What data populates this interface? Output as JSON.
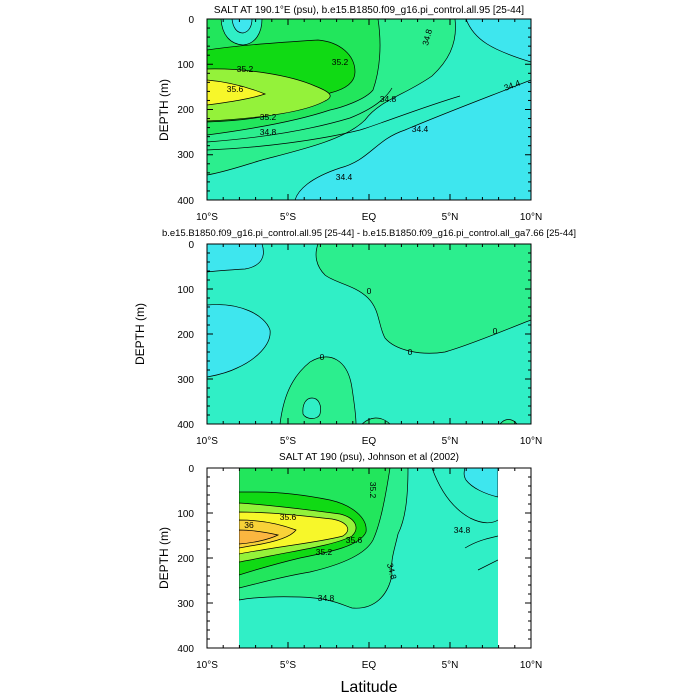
{
  "figure": {
    "xlabel": "Latitude"
  },
  "chart_data": [
    {
      "type": "contour",
      "title": "SALT AT 190.1°E (psu), b.e15.B1850.f09_g16.pi_control.all.95 [25-44]",
      "xlabel": "",
      "ylabel": "DEPTH (m)",
      "xlim": [
        -10,
        10
      ],
      "ylim": [
        400,
        0
      ],
      "x_ticks": [
        -10,
        -5,
        0,
        5,
        10
      ],
      "x_tick_labels": [
        "10°S",
        "5°S",
        "EQ",
        "5°N",
        "10°N"
      ],
      "y_ticks": [
        0,
        100,
        200,
        300,
        400
      ],
      "y_tick_labels": [
        "0",
        "100",
        "200",
        "300",
        "400"
      ],
      "contour_levels": [
        34.4,
        34.6,
        34.8,
        35.0,
        35.2,
        35.4,
        35.6
      ],
      "fill_colors": {
        "base": "#3ee6ee",
        "lt34.6": "#3ee6ee",
        "34.6-34.8": "#30efc6",
        "34.8-35.0": "#2cee8e",
        "35.0-35.2": "#22e65c",
        "35.2-35.4": "#10da14",
        "35.4-35.6": "#94f23a",
        "gt35.6": "#f7f72a"
      },
      "contour_labels": [
        {
          "text": "35.2",
          "x": -7.5,
          "y": 108
        },
        {
          "text": "35.6",
          "x": -8.6,
          "y": 155
        },
        {
          "text": "35.2",
          "x": -2.7,
          "y": 98
        },
        {
          "text": "35.2",
          "x": -4.5,
          "y": 212
        },
        {
          "text": "34.8",
          "x": -4.6,
          "y": 245
        },
        {
          "text": "34.8",
          "x": 1.2,
          "y": 178
        },
        {
          "text": "34.4",
          "x": 3.2,
          "y": 240
        },
        {
          "text": "34.4",
          "x": -1.6,
          "y": 340
        },
        {
          "text": "34.8",
          "x": 3.8,
          "y": 40
        },
        {
          "text": "34.4",
          "x": 9.0,
          "y": 148
        }
      ]
    },
    {
      "type": "contour",
      "title": "b.e15.B1850.f09_g16.pi_control.all.95 [25-44] - b.e15.B1850.f09_g16.pi_control.all_ga7.66 [25-44]",
      "xlabel": "",
      "ylabel": "DEPTH (m)",
      "xlim": [
        -10,
        10
      ],
      "ylim": [
        400,
        0
      ],
      "x_ticks": [
        -10,
        -5,
        0,
        5,
        10
      ],
      "x_tick_labels": [
        "10°S",
        "5°S",
        "EQ",
        "5°N",
        "10°N"
      ],
      "y_ticks": [
        0,
        100,
        200,
        300,
        400
      ],
      "y_tick_labels": [
        "0",
        "100",
        "200",
        "300",
        "400"
      ],
      "contour_levels": [
        -0.2,
        0
      ],
      "fill_colors": {
        "lt-0.2": "#3ee6ee",
        "-0.2-0": "#30efc6",
        "gt0": "#2cee8e"
      },
      "contour_labels": [
        {
          "text": "0",
          "x": -0.1,
          "y": 78
        },
        {
          "text": "0",
          "x": 2.5,
          "y": 170
        },
        {
          "text": "0",
          "x": 7.9,
          "y": 196
        },
        {
          "text": "0",
          "x": -3.0,
          "y": 230
        }
      ]
    },
    {
      "type": "contour",
      "title": "SALT AT 190 (psu), Johnson et al (2002)",
      "xlabel": "Latitude",
      "ylabel": "DEPTH (m)",
      "xlim": [
        -10,
        10
      ],
      "ylim": [
        400,
        0
      ],
      "data_xrange": [
        -8,
        8
      ],
      "x_ticks": [
        -10,
        -5,
        0,
        5,
        10
      ],
      "x_tick_labels": [
        "10°S",
        "5°S",
        "EQ",
        "5°N",
        "10°N"
      ],
      "y_ticks": [
        0,
        100,
        200,
        300,
        400
      ],
      "y_tick_labels": [
        "0",
        "100",
        "200",
        "300",
        "400"
      ],
      "contour_levels": [
        34.6,
        34.8,
        35.0,
        35.2,
        35.4,
        35.6,
        35.8,
        36.0
      ],
      "fill_colors": {
        "lt34.8": "#30efc6",
        "34.8-35.0": "#2cee8e",
        "35.0-35.2": "#22e65c",
        "35.2-35.4": "#10da14",
        "35.4-35.6": "#94f23a",
        "35.6-35.8": "#f7f72a",
        "35.8-36.0": "#f8d238",
        "gt36.0": "#fbb640"
      },
      "contour_labels": [
        {
          "text": "35.2",
          "x": 0.1,
          "y": 60
        },
        {
          "text": "35.6",
          "x": -5.0,
          "y": 124
        },
        {
          "text": "36",
          "x": -7.3,
          "y": 144
        },
        {
          "text": "35.6",
          "x": -1.1,
          "y": 185
        },
        {
          "text": "35.2",
          "x": -2.9,
          "y": 210
        },
        {
          "text": "34.8",
          "x": 5.9,
          "y": 155
        },
        {
          "text": "34.8",
          "x": 1.2,
          "y": 250
        },
        {
          "text": "34.8",
          "x": -2.7,
          "y": 325
        }
      ]
    }
  ]
}
